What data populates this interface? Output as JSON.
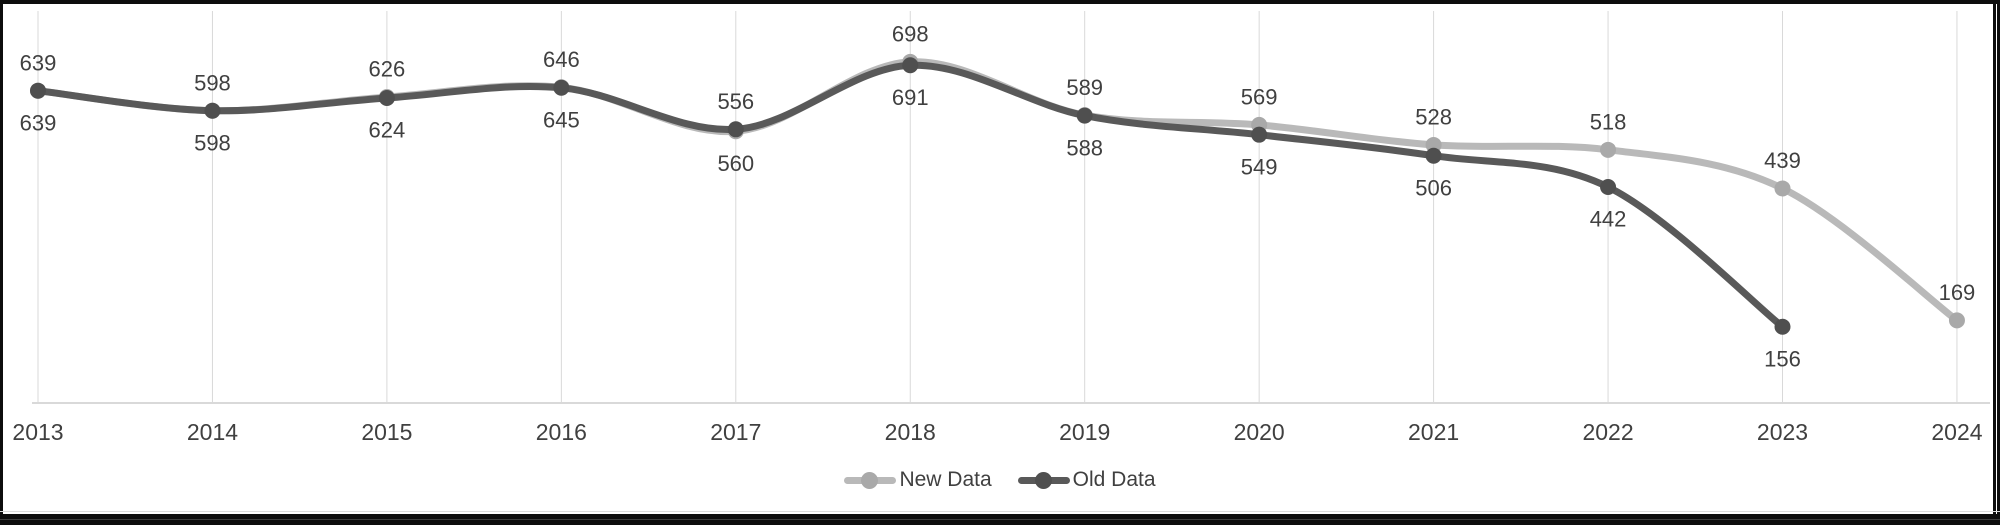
{
  "chart_data": {
    "type": "line",
    "title": "",
    "xlabel": "",
    "ylabel": "",
    "x": [
      2013,
      2014,
      2015,
      2016,
      2017,
      2018,
      2019,
      2020,
      2021,
      2022,
      2023,
      2024
    ],
    "series": [
      {
        "name": "New Data",
        "color": "#b9b9b9",
        "marker_color": "#a9a9a9",
        "values": [
          639,
          598,
          626,
          646,
          556,
          698,
          589,
          569,
          528,
          518,
          439,
          169
        ]
      },
      {
        "name": "Old Data",
        "color": "#595959",
        "marker_color": "#4f4f4f",
        "values": [
          639,
          598,
          624,
          645,
          560,
          691,
          588,
          549,
          506,
          442,
          156,
          null
        ]
      }
    ],
    "ylim": [
      0,
      800
    ],
    "grid": "vertical-only",
    "gridline_color": "#d9d9d9",
    "axis_line_color": "#d9d9d9",
    "label_color": "#404040",
    "smooth": true,
    "data_labels": true,
    "legend_position": "bottom"
  },
  "colors": {
    "background": "#ffffff",
    "frame": "#0d0d0d"
  }
}
